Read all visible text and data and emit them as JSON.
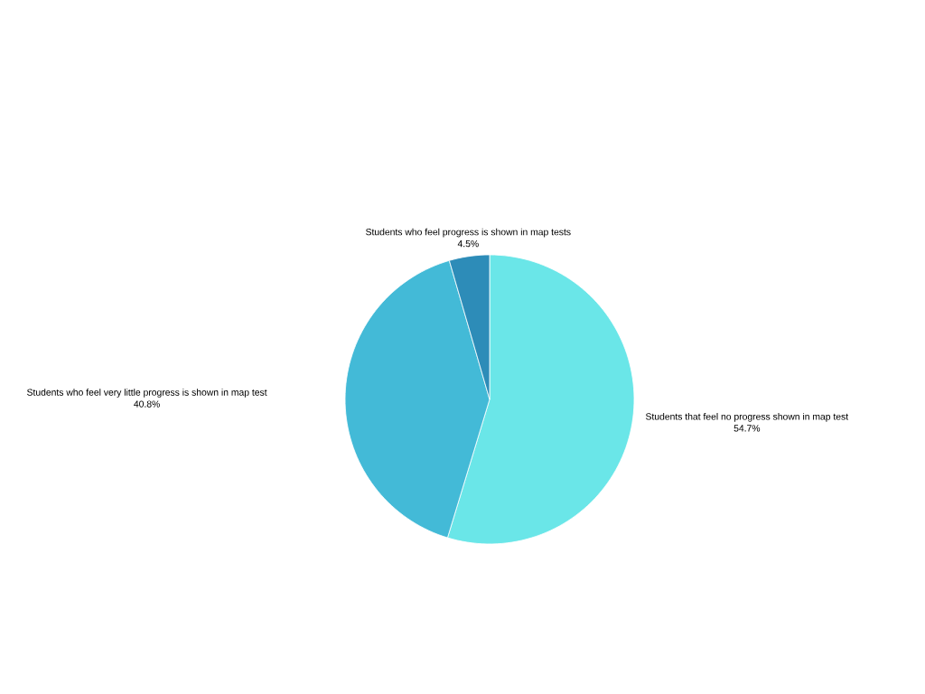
{
  "chart_data": {
    "type": "pie",
    "categories": [
      "Students that feel no progress shown in map test",
      "Students who feel very little progress is shown in map test",
      "Students who feel progress is shown in map tests"
    ],
    "values": [
      54.7,
      40.8,
      4.5
    ],
    "colors": [
      "#6ae6e8",
      "#43bad7",
      "#2d8cb8"
    ],
    "value_labels": [
      "54.7%",
      "40.8%",
      "4.5%"
    ]
  }
}
